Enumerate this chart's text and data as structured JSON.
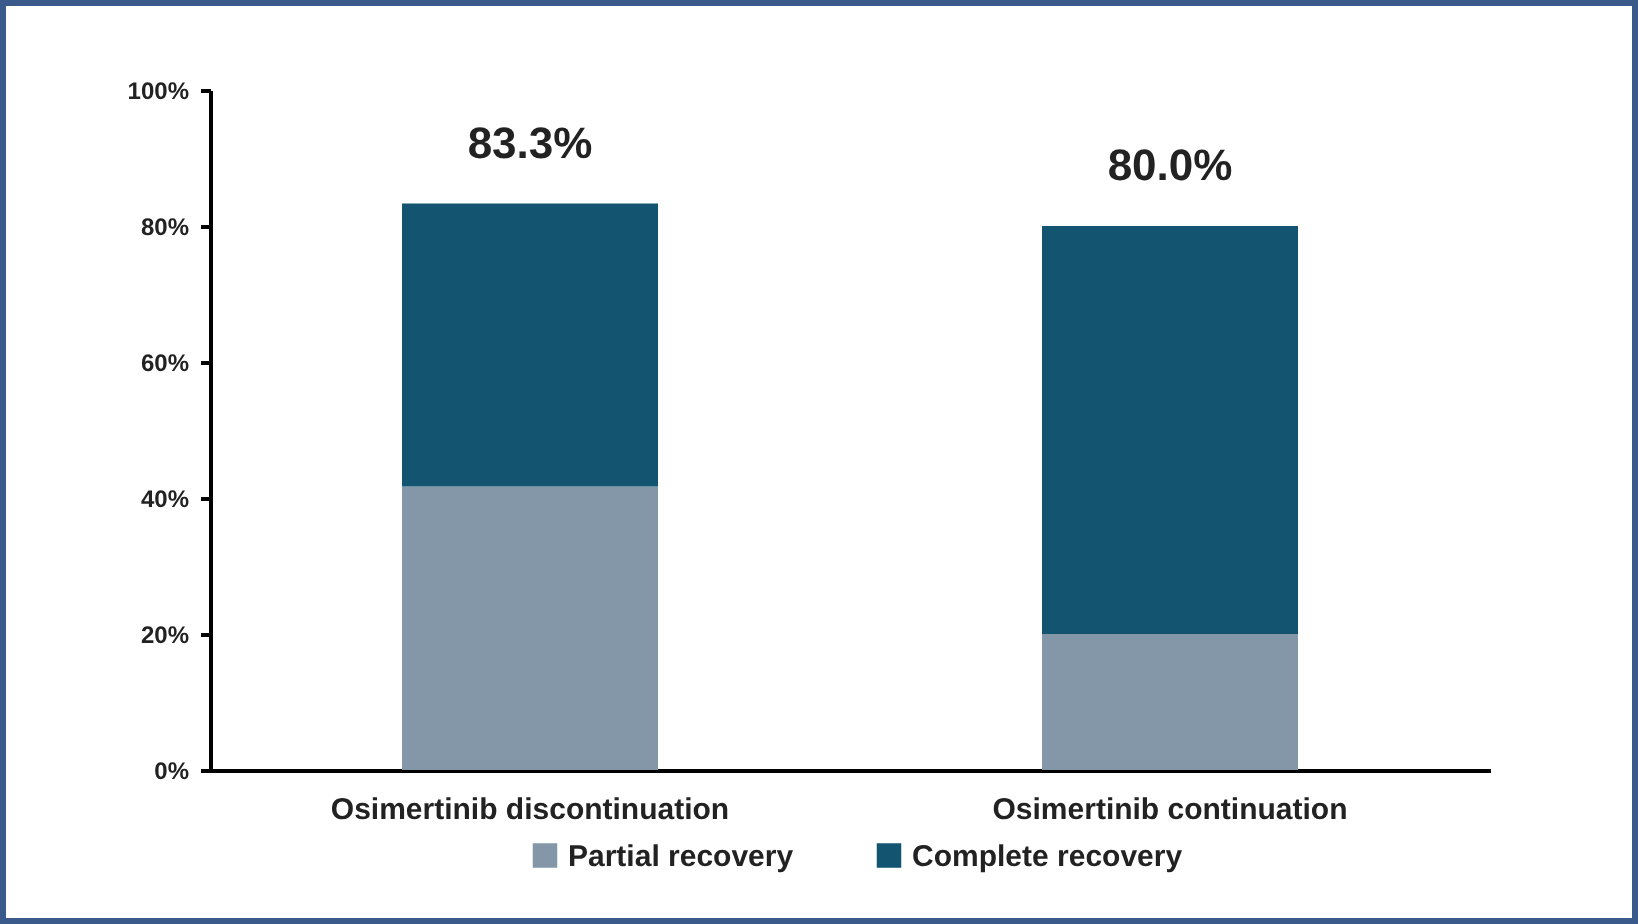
{
  "chart_data": {
    "type": "bar",
    "stacked": true,
    "categories": [
      "Osimertinib discontinuation",
      "Osimertinib continuation"
    ],
    "series": [
      {
        "name": "Partial recovery",
        "color": "#8497a8",
        "values": [
          41.7,
          20.0
        ]
      },
      {
        "name": "Complete recovery",
        "color": "#135470",
        "values": [
          41.6,
          60.0
        ]
      }
    ],
    "totals": [
      "83.3%",
      "80.0%"
    ],
    "ylim": [
      0,
      100
    ],
    "yticks": [
      {
        "value": 0,
        "label": "0%"
      },
      {
        "value": 20,
        "label": "20%"
      },
      {
        "value": 40,
        "label": "40%"
      },
      {
        "value": 60,
        "label": "60%"
      },
      {
        "value": 80,
        "label": "80%"
      },
      {
        "value": 100,
        "label": "100%"
      }
    ],
    "grid": false,
    "legend": "bottom"
  }
}
